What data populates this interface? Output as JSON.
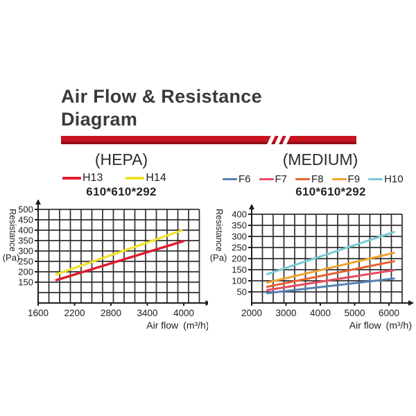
{
  "header": {
    "title_line1": "Air Flow & Resistance",
    "title_line2": "Diagram",
    "underline_color": "#c81420",
    "underline_shadow_color": "#8f0d17"
  },
  "hepa": {
    "header": "(HEPA)",
    "size": "610*610*292"
  },
  "medium": {
    "header": "(MEDIUM)",
    "size": "610*610*292"
  },
  "chart_data": [
    {
      "id": "hepa",
      "type": "line",
      "title": "(HEPA)",
      "subtitle": "610*610*292",
      "xlabel": "Air flow",
      "xlabel_unit": "(m³/h)",
      "ylabel_rotated": "Resistance",
      "ylabel_unit": "(Pa)",
      "x_ticks": [
        1600,
        2200,
        2800,
        3400,
        4000
      ],
      "y_ticks": [
        500,
        450,
        400,
        350,
        300,
        250,
        200,
        150
      ],
      "xlim": [
        1600,
        4330
      ],
      "ylim": [
        100,
        500
      ],
      "grid": true,
      "legend_position": "top",
      "series": [
        {
          "name": "H13",
          "color": "#e11b2d",
          "points": [
            [
              1900,
              160
            ],
            [
              4000,
              348
            ]
          ]
        },
        {
          "name": "H14",
          "color": "#f0e32a",
          "points": [
            [
              1900,
              188
            ],
            [
              3960,
              398
            ]
          ]
        }
      ]
    },
    {
      "id": "medium",
      "type": "line",
      "title": "(MEDIUM)",
      "subtitle": "610*610*292",
      "xlabel": "Air flow",
      "xlabel_unit": "(m³/h)",
      "ylabel_rotated": "Resistance",
      "ylabel_unit": "(Pa)",
      "x_ticks": [
        2000,
        3000,
        4000,
        5000,
        6000
      ],
      "y_ticks": [
        400,
        350,
        300,
        250,
        200,
        150,
        100,
        50
      ],
      "xlim": [
        2000,
        6400
      ],
      "ylim": [
        0,
        400
      ],
      "grid": true,
      "legend_position": "top",
      "series": [
        {
          "name": "F6",
          "color": "#5580b4",
          "points": [
            [
              2450,
              44
            ],
            [
              6150,
              110
            ]
          ]
        },
        {
          "name": "F7",
          "color": "#e84a5f",
          "points": [
            [
              2450,
              58
            ],
            [
              6150,
              148
            ]
          ]
        },
        {
          "name": "F8",
          "color": "#e6622e",
          "points": [
            [
              2450,
              73
            ],
            [
              6150,
              188
            ]
          ]
        },
        {
          "name": "F9",
          "color": "#efa32f",
          "points": [
            [
              2450,
              92
            ],
            [
              6150,
              226
            ]
          ]
        },
        {
          "name": "H10",
          "color": "#76c9d8",
          "points": [
            [
              2450,
              130
            ],
            [
              6150,
              320
            ]
          ]
        }
      ]
    }
  ]
}
